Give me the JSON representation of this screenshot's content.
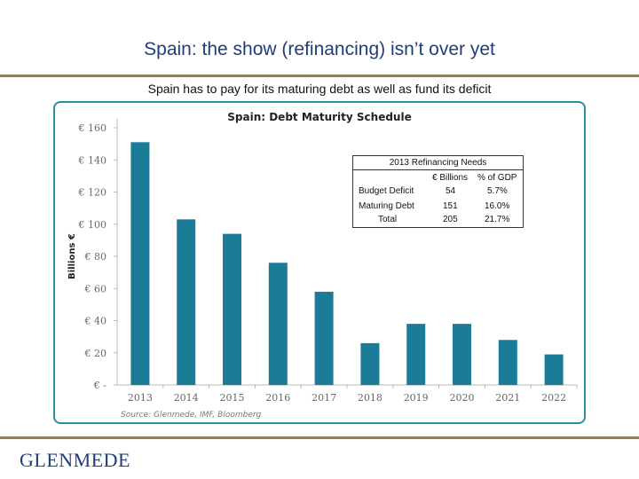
{
  "slide": {
    "title": "Spain: the show (refinancing) isn’t over yet",
    "subtitle": "Spain has to pay for its maturing debt as well as fund its deficit",
    "logo_text": "GLENMEDE"
  },
  "chart_data": {
    "type": "bar",
    "title": "Spain: Debt Maturity Schedule",
    "xlabel": "",
    "ylabel": "Billions €",
    "ylim": [
      0,
      160
    ],
    "y_ticks": [
      0,
      20,
      40,
      60,
      80,
      100,
      120,
      140,
      160
    ],
    "y_tick_labels": [
      "€ -",
      "€ 20",
      "€ 40",
      "€ 60",
      "€ 80",
      "€ 100",
      "€ 120",
      "€ 140",
      "€ 160"
    ],
    "categories": [
      "2013",
      "2014",
      "2015",
      "2016",
      "2017",
      "2018",
      "2019",
      "2020",
      "2021",
      "2022"
    ],
    "values": [
      151,
      103,
      94,
      76,
      58,
      26,
      38,
      38,
      28,
      19
    ],
    "grid": false,
    "source": "Source: Glenmede, IMF, Bloomberg",
    "bar_color": "#1a7c96",
    "axis_color": "#bbbbbb",
    "tick_text_color": "#666666",
    "title_color": "#222222"
  },
  "refinancing_table": {
    "title": "2013 Refinancing Needs",
    "headers": [
      "€ Billions",
      "% of GDP"
    ],
    "rows": [
      {
        "label": "Budget Deficit",
        "billions": "54",
        "pct_gdp": "5.7%"
      },
      {
        "label": "Maturing Debt",
        "billions": "151",
        "pct_gdp": "16.0%"
      },
      {
        "label": "Total",
        "billions": "205",
        "pct_gdp": "21.7%"
      }
    ]
  },
  "colors": {
    "title": "#1f3d7a",
    "rule": "#8d7f62",
    "panel_border": "#2c8ea6"
  }
}
